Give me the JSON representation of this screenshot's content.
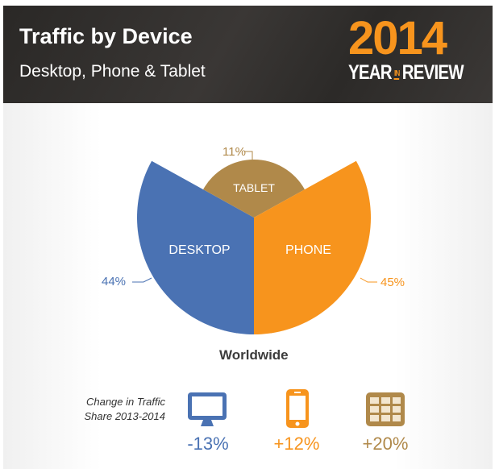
{
  "header": {
    "title": "Traffic by Device",
    "subtitle": "Desktop, Phone & Tablet",
    "badge_year": "2014",
    "badge_year_label": "YEAR",
    "badge_in": "IN",
    "badge_review": "REVIEW"
  },
  "chart_data": {
    "type": "pie",
    "title": "",
    "caption": "Worldwide",
    "slices": [
      {
        "name": "DESKTOP",
        "value": 44,
        "label": "44%",
        "color": "#4a72b3"
      },
      {
        "name": "TABLET",
        "value": 11,
        "label": "11%",
        "color": "#b0894a"
      },
      {
        "name": "PHONE",
        "value": 45,
        "label": "45%",
        "color": "#f7941d"
      }
    ]
  },
  "change": {
    "label": "Change in Traffic Share 2013-2014",
    "items": [
      {
        "device": "desktop",
        "icon": "monitor-icon",
        "value": "-13%",
        "color": "#4a72b3"
      },
      {
        "device": "phone",
        "icon": "smartphone-icon",
        "value": "+12%",
        "color": "#f7941d"
      },
      {
        "device": "tablet",
        "icon": "tablet-grid-icon",
        "value": "+20%",
        "color": "#b0894a"
      }
    ]
  }
}
